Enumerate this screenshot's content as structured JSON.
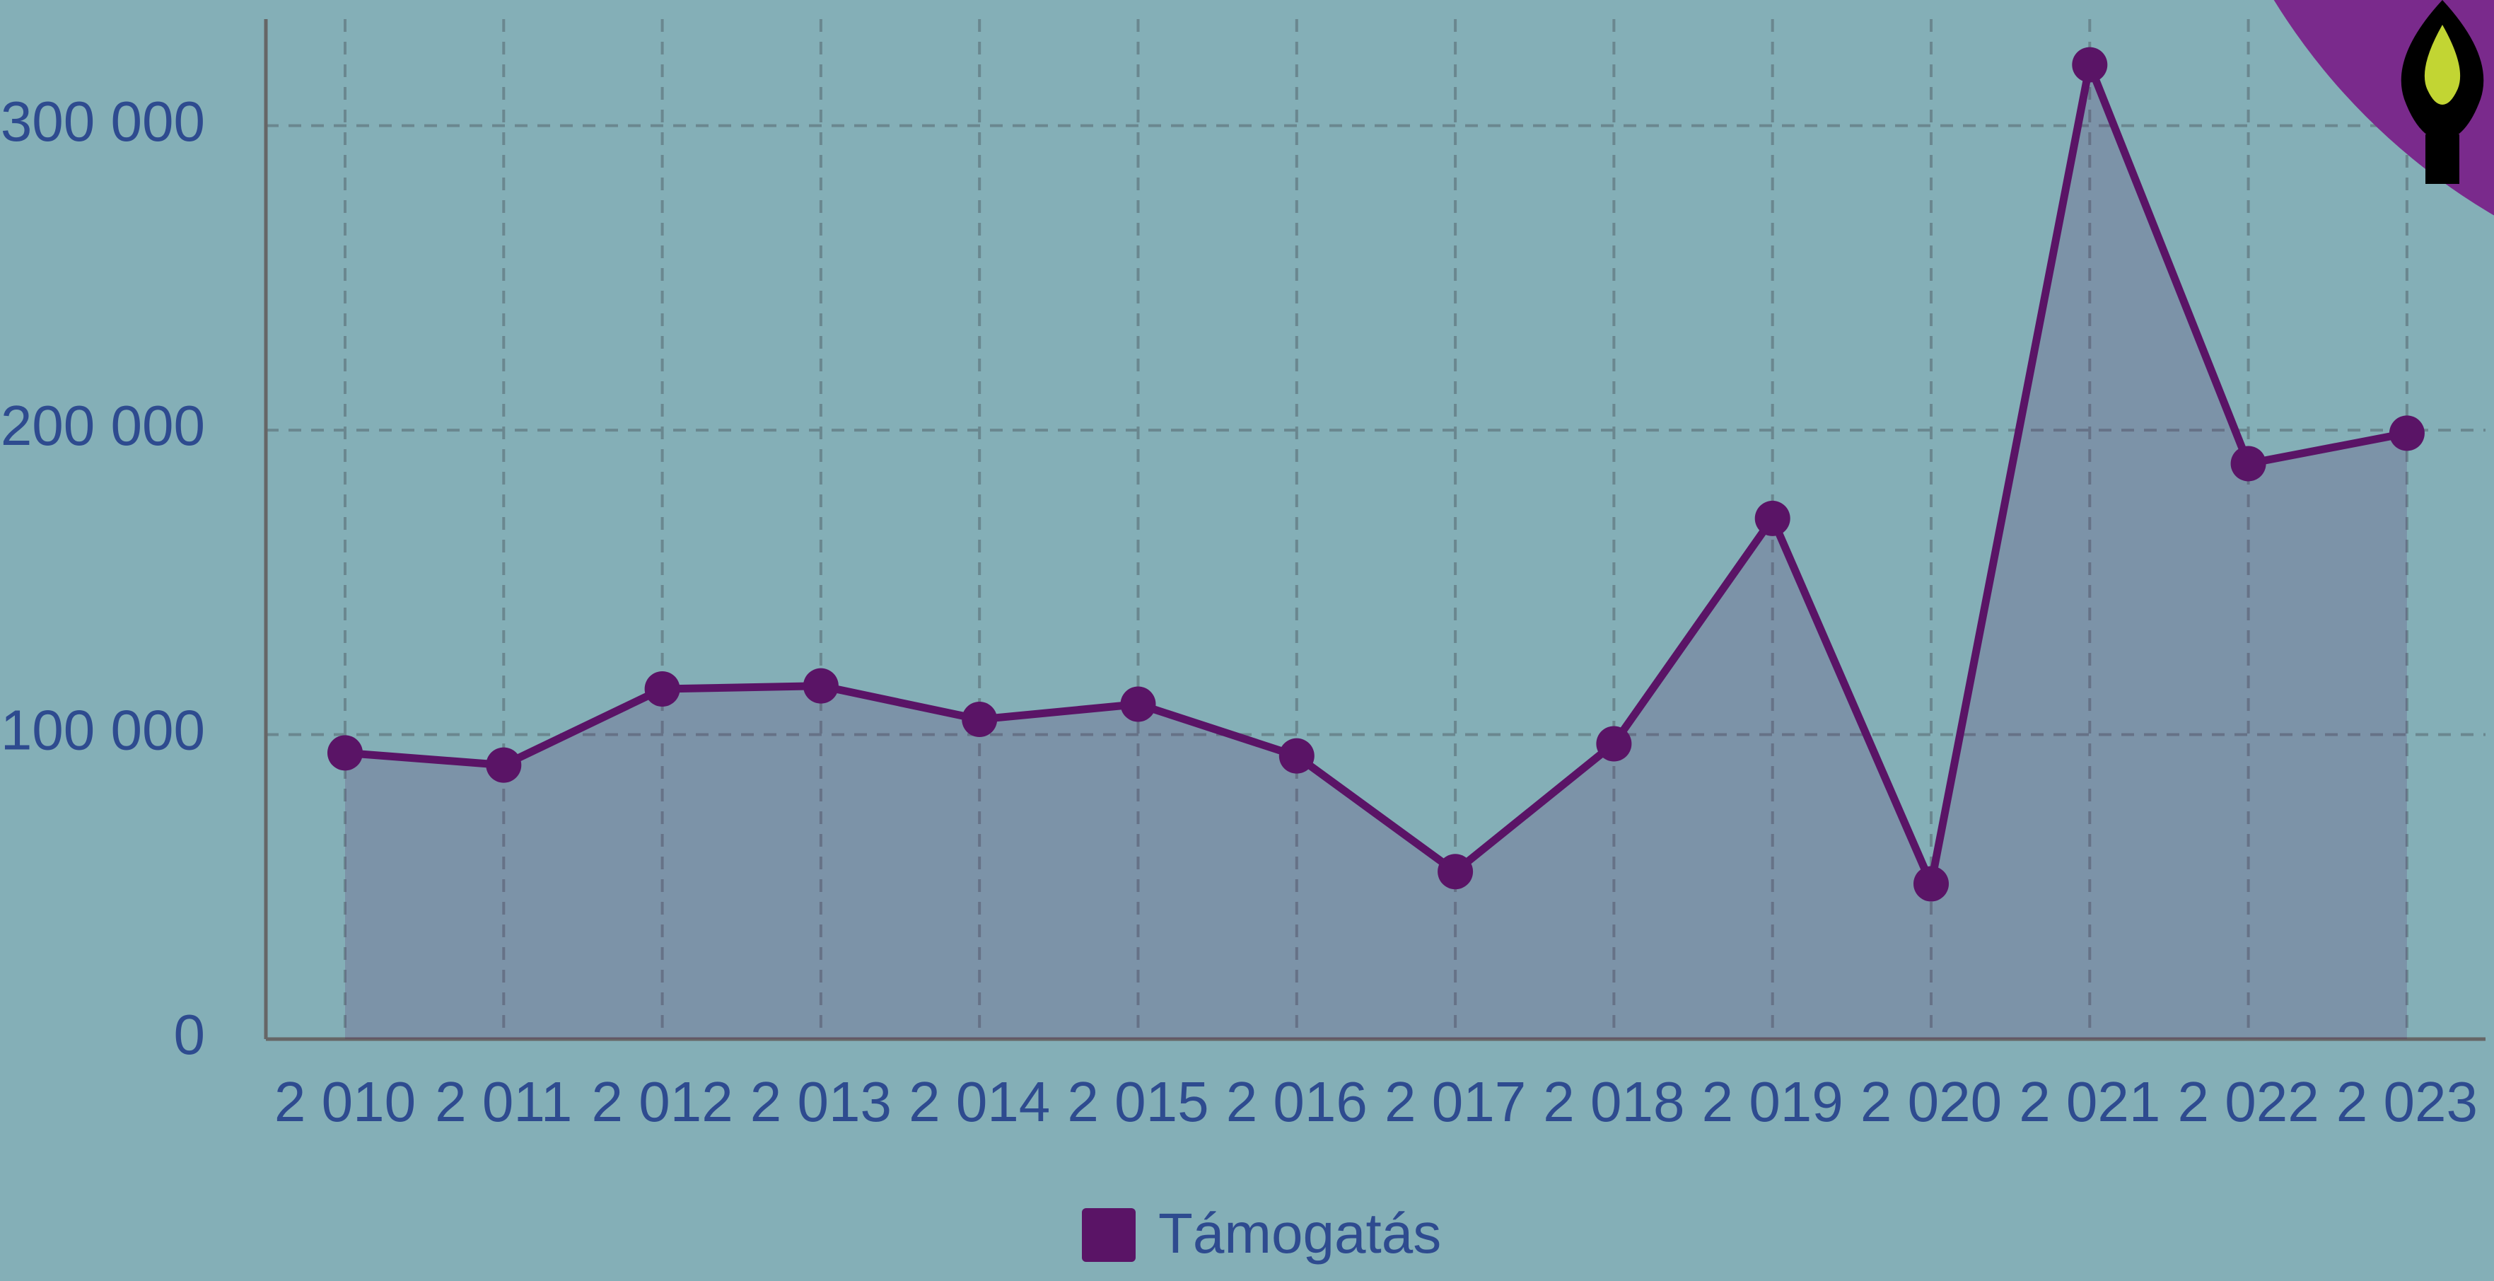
{
  "chart_data": {
    "type": "line",
    "categories": [
      "2 010",
      "2 011",
      "2 012",
      "2 013",
      "2 014",
      "2 015",
      "2 016",
      "2 017",
      "2 018",
      "2 019",
      "2 020",
      "2 021",
      "2 022",
      "2 023"
    ],
    "series": [
      {
        "name": "Támogatás",
        "color": "#5a1466",
        "values": [
          94000,
          90000,
          115000,
          116000,
          105000,
          110000,
          93000,
          55000,
          97000,
          171000,
          51000,
          320000,
          189000,
          199000
        ]
      }
    ],
    "ylim": [
      0,
      335000
    ],
    "yticks": [
      {
        "value": 0,
        "label": "0"
      },
      {
        "value": 100000,
        "label": "100 000"
      },
      {
        "value": 200000,
        "label": "200 000"
      },
      {
        "value": 300000,
        "label": "300 000"
      }
    ],
    "grid": true,
    "area": true,
    "legend": "bottom"
  }
}
